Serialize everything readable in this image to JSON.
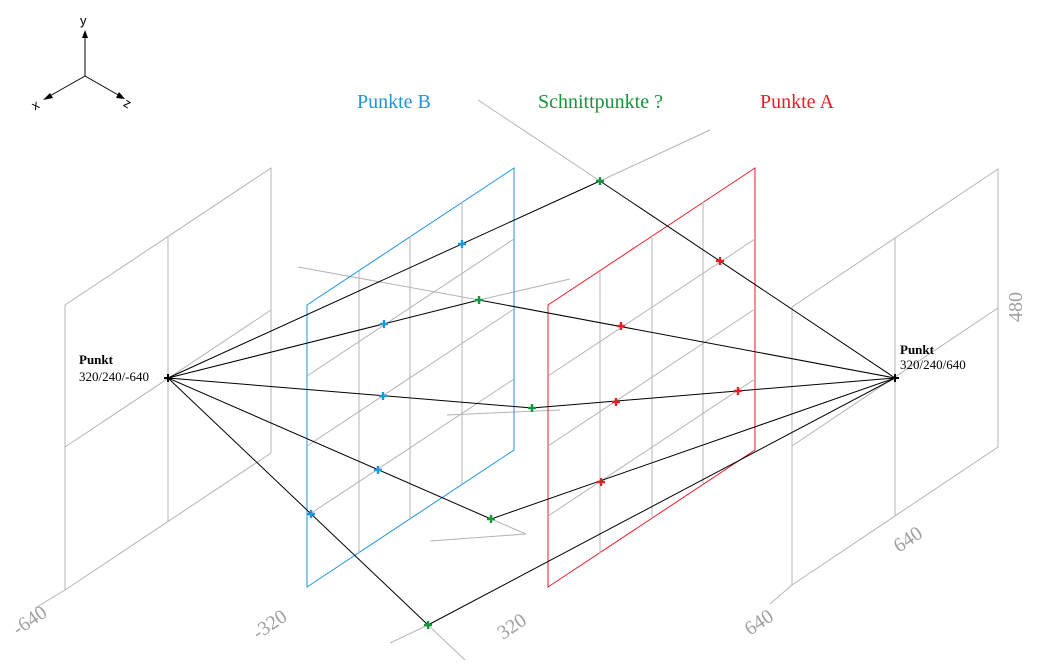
{
  "axes_gizmo": {
    "y_label": "y",
    "x_label": "x",
    "z_label": "z"
  },
  "legend": {
    "b_label": "Punkte B",
    "intersections_label": "Schnittpunkte ?",
    "a_label": "Punkte A"
  },
  "source_point": {
    "title": "Punkt",
    "coords": "320/240/-640"
  },
  "target_point": {
    "title": "Punkt",
    "coords": "320/240/640"
  },
  "scale_labels": {
    "z_neg640": "-640",
    "z_neg320": "-320",
    "z_320": "320",
    "z_640": "640",
    "x_640": "640",
    "y_480": "480"
  },
  "colors": {
    "grid": "#b4b4b4",
    "plane_b": "#1e96dc",
    "plane_a": "#e61e28",
    "intersection": "#14963c",
    "rays": "#000000"
  }
}
